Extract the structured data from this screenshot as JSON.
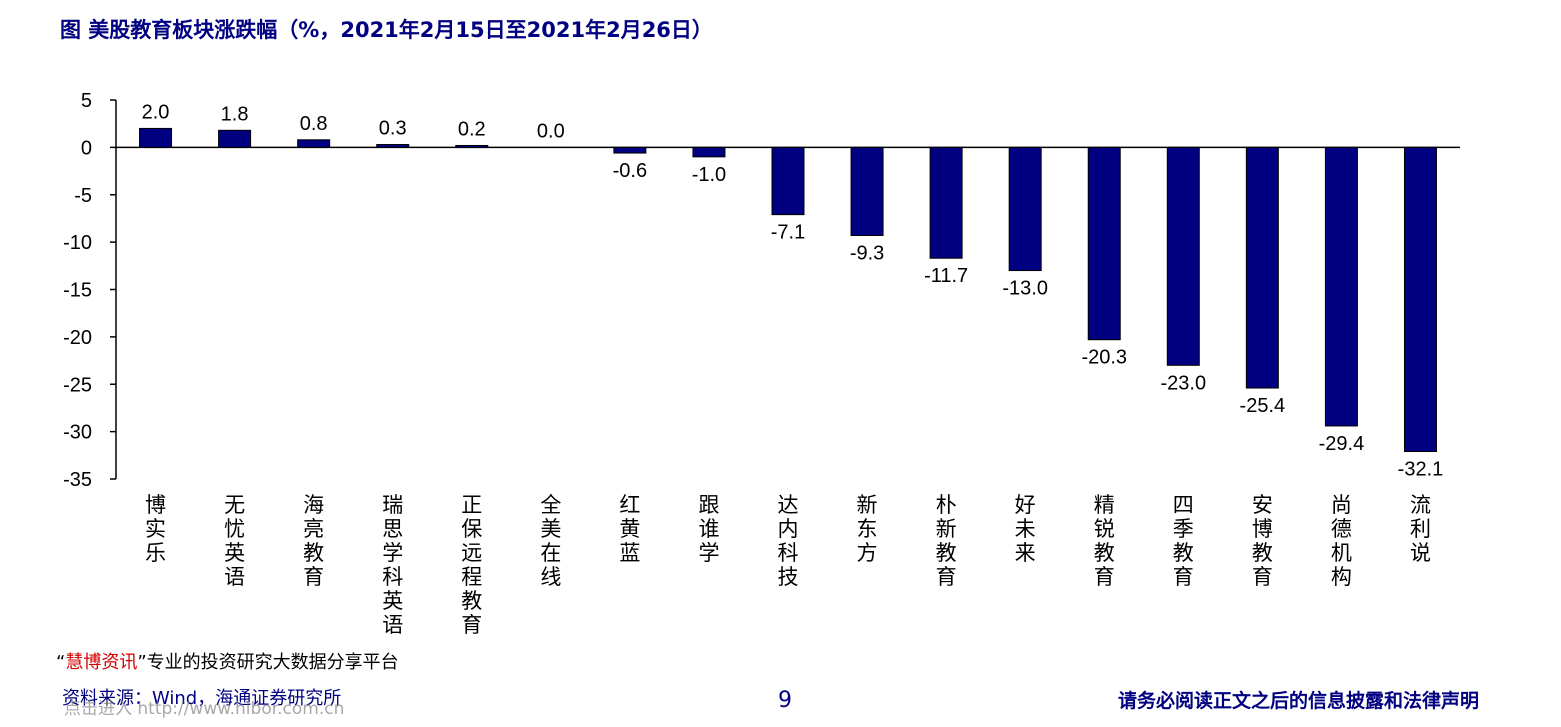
{
  "title": "图  美股教育板块涨跌幅（%，2021年2月15日至2021年2月26日）",
  "colors": {
    "bar": "#000080",
    "title": "#000080",
    "axis": "#000000",
    "brand": "#d40000"
  },
  "chart_data": {
    "type": "bar",
    "categories": [
      "博实乐",
      "无忧英语",
      "海亮教育",
      "瑞思学科英语",
      "正保远程教育",
      "全美在线",
      "红黄蓝",
      "跟谁学",
      "达内科技",
      "新东方",
      "朴新教育",
      "好未来",
      "精锐教育",
      "四季教育",
      "安博教育",
      "尚德机构",
      "流利说"
    ],
    "values": [
      2.0,
      1.8,
      0.8,
      0.3,
      0.2,
      0.0,
      -0.6,
      -1.0,
      -7.1,
      -9.3,
      -11.7,
      -13.0,
      -20.3,
      -23.0,
      -25.4,
      -29.4,
      -32.1
    ],
    "value_labels": [
      "2.0",
      "1.8",
      "0.8",
      "0.3",
      "0.2",
      "0.0",
      "-0.6",
      "-1.0",
      "-7.1",
      "-9.3",
      "-11.7",
      "-13.0",
      "-20.3",
      "-23.0",
      "-25.4",
      "-29.4",
      "-32.1"
    ],
    "yticks": [
      5,
      0,
      -5,
      -10,
      -15,
      -20,
      -25,
      -30,
      -35
    ],
    "ylim": [
      -35,
      5
    ],
    "xlabel": "",
    "ylabel": "",
    "grid": false,
    "legend": "none"
  },
  "footer": {
    "promo_quote_open": "“",
    "promo_brand": "慧博资讯",
    "promo_quote_close": "”",
    "promo_text": "专业的投资研究大数据分享平台",
    "source": "资料来源：Wind，海通证券研究所",
    "watermark": "点击进入 http://www.hibor.com.cn",
    "page_number": "9",
    "disclaimer": "请务必阅读正文之后的信息披露和法律声明"
  }
}
